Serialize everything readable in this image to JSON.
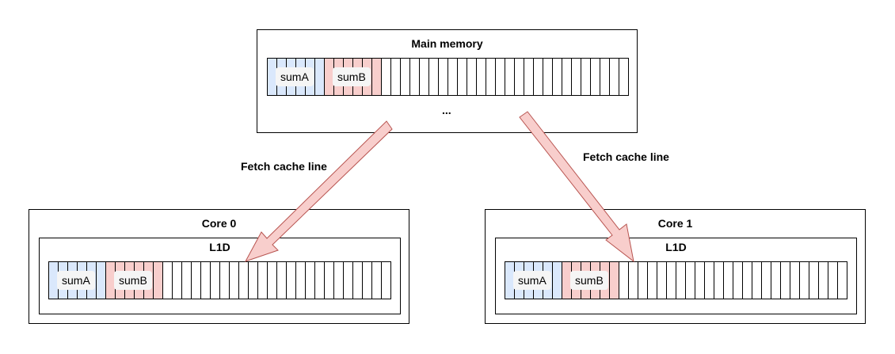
{
  "main_memory": {
    "title": "Main memory",
    "label_a": "sumA",
    "label_b": "sumB",
    "ellipsis": "..."
  },
  "core0": {
    "title": "Core 0",
    "cache_title": "L1D",
    "label_a": "sumA",
    "label_b": "sumB"
  },
  "core1": {
    "title": "Core 1",
    "cache_title": "L1D",
    "label_a": "sumA",
    "label_b": "sumB"
  },
  "arrows": {
    "left_label": "Fetch cache line",
    "right_label": "Fetch cache line"
  },
  "colors": {
    "sumA_fill": "#dae8fc",
    "sumB_fill": "#f8cecc",
    "arrow_fill": "#f8cecc",
    "arrow_stroke": "#b85450",
    "tag_fill": "#f5f5f5"
  }
}
